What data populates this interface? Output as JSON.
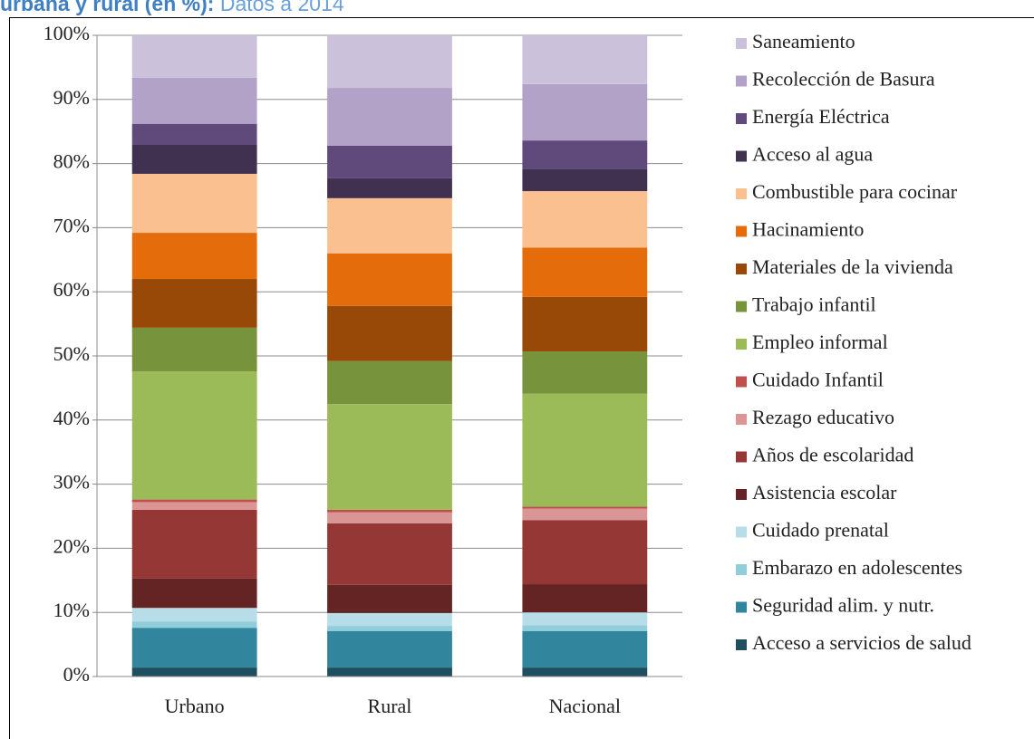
{
  "chart_data": {
    "type": "bar",
    "stacked": true,
    "title": "urbana y rural (en %):",
    "subtitle": "Datos a 2014",
    "categories": [
      "Urbano",
      "Rural",
      "Nacional"
    ],
    "ylim": [
      0,
      100
    ],
    "yticks": [
      {
        "value": 0,
        "label": "0%"
      },
      {
        "value": 10,
        "label": "10%"
      },
      {
        "value": 20,
        "label": "20%"
      },
      {
        "value": 30,
        "label": "30%"
      },
      {
        "value": 40,
        "label": "40%"
      },
      {
        "value": 50,
        "label": "50%"
      },
      {
        "value": 60,
        "label": "60%"
      },
      {
        "value": 70,
        "label": "70%"
      },
      {
        "value": 80,
        "label": "80%"
      },
      {
        "value": 90,
        "label": "90%"
      },
      {
        "value": 100,
        "label": "100%"
      }
    ],
    "grid": true,
    "series": [
      {
        "name": "Acceso a servicios de salud",
        "color": "#1f4e5f",
        "values": [
          1.4,
          1.4,
          1.4
        ]
      },
      {
        "name": "Seguridad alim. y nutr.",
        "color": "#31859c",
        "values": [
          6.2,
          5.7,
          5.7
        ]
      },
      {
        "name": "Embarazo en adolescentes",
        "color": "#92cddc",
        "values": [
          1.0,
          0.8,
          0.9
        ]
      },
      {
        "name": "Cuidado prenatal",
        "color": "#b7dee8",
        "values": [
          2.1,
          2.0,
          2.0
        ]
      },
      {
        "name": "Asistencia escolar",
        "color": "#632423",
        "values": [
          4.6,
          4.4,
          4.4
        ]
      },
      {
        "name": "Años de escolaridad",
        "color": "#953735",
        "values": [
          10.7,
          9.6,
          10.0
        ]
      },
      {
        "name": "Rezago educativo",
        "color": "#da9694",
        "values": [
          1.2,
          1.7,
          1.8
        ]
      },
      {
        "name": "Cuidado Infantil",
        "color": "#c0504d",
        "values": [
          0.4,
          0.4,
          0.3
        ]
      },
      {
        "name": "Empleo informal",
        "color": "#9bbb59",
        "values": [
          20.0,
          16.5,
          17.6
        ]
      },
      {
        "name": "Trabajo infantil",
        "color": "#77933c",
        "values": [
          6.8,
          6.7,
          6.6
        ]
      },
      {
        "name": "Materiales de la vivienda",
        "color": "#984807",
        "values": [
          7.6,
          8.6,
          8.5
        ]
      },
      {
        "name": "Hacinamiento",
        "color": "#e46c0a",
        "values": [
          7.2,
          8.2,
          7.7
        ]
      },
      {
        "name": "Combustible para cocinar",
        "color": "#fac090",
        "values": [
          9.2,
          8.6,
          8.8
        ]
      },
      {
        "name": "Acceso al agua",
        "color": "#403151",
        "values": [
          4.6,
          3.1,
          3.5
        ]
      },
      {
        "name": "Energía Eléctrica",
        "color": "#604a7b",
        "values": [
          3.2,
          5.1,
          4.4
        ]
      },
      {
        "name": "Recolección de Basura",
        "color": "#b3a2c7",
        "values": [
          7.2,
          9.0,
          8.8
        ]
      },
      {
        "name": "Saneamiento",
        "color": "#ccc1da",
        "values": [
          6.6,
          8.2,
          7.6
        ]
      }
    ]
  }
}
